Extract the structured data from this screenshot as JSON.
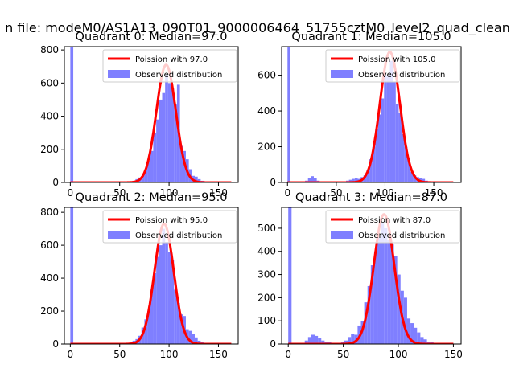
{
  "figure": {
    "suptitle": "n file: modeM0/AS1A13_090T01_9000006464_51755cztM0_level2_quad_clean"
  },
  "colors": {
    "observed": "#7f7fff",
    "poisson": "#ff0000",
    "axes": "#000000",
    "background": "#ffffff"
  },
  "chart_data": [
    {
      "type": "bar",
      "title": "Quadrant 0: Median=97.0",
      "xlim": [
        -6,
        170
      ],
      "ylim": [
        0,
        820
      ],
      "xticks": [
        0,
        50,
        100,
        150
      ],
      "yticks": [
        0,
        200,
        400,
        600,
        800
      ],
      "grid": false,
      "legend_position": "top-right",
      "series": [
        {
          "name": "Poission with 97.0",
          "kind": "line",
          "lambda": 97.0,
          "scale": 710,
          "x_range": [
            0,
            163
          ]
        },
        {
          "name": "Observed distribution",
          "kind": "histogram",
          "bin_width": 3,
          "bins": [
            {
              "x": 0,
              "y": 840
            },
            {
              "x": 63,
              "y": 10
            },
            {
              "x": 66,
              "y": 20
            },
            {
              "x": 69,
              "y": 30
            },
            {
              "x": 72,
              "y": 40
            },
            {
              "x": 75,
              "y": 80
            },
            {
              "x": 78,
              "y": 130
            },
            {
              "x": 81,
              "y": 190
            },
            {
              "x": 84,
              "y": 300
            },
            {
              "x": 87,
              "y": 380
            },
            {
              "x": 90,
              "y": 500
            },
            {
              "x": 93,
              "y": 540
            },
            {
              "x": 96,
              "y": 650
            },
            {
              "x": 99,
              "y": 600
            },
            {
              "x": 102,
              "y": 570
            },
            {
              "x": 105,
              "y": 470
            },
            {
              "x": 108,
              "y": 590
            },
            {
              "x": 111,
              "y": 220
            },
            {
              "x": 114,
              "y": 190
            },
            {
              "x": 117,
              "y": 140
            },
            {
              "x": 120,
              "y": 80
            },
            {
              "x": 123,
              "y": 40
            },
            {
              "x": 126,
              "y": 35
            },
            {
              "x": 129,
              "y": 20
            },
            {
              "x": 132,
              "y": 10
            }
          ]
        }
      ]
    },
    {
      "type": "bar",
      "title": "Quadrant 1: Median=105.0",
      "xlim": [
        -6,
        178
      ],
      "ylim": [
        0,
        760
      ],
      "xticks": [
        0,
        50,
        100,
        150
      ],
      "yticks": [
        0,
        200,
        400,
        600
      ],
      "grid": false,
      "legend_position": "top-right",
      "series": [
        {
          "name": "Poission with 105.0",
          "kind": "line",
          "lambda": 105.0,
          "scale": 730,
          "x_range": [
            0,
            170
          ]
        },
        {
          "name": "Observed distribution",
          "kind": "histogram",
          "bin_width": 3,
          "bins": [
            {
              "x": 0,
              "y": 780
            },
            {
              "x": 18,
              "y": 10
            },
            {
              "x": 21,
              "y": 25
            },
            {
              "x": 24,
              "y": 35
            },
            {
              "x": 27,
              "y": 25
            },
            {
              "x": 30,
              "y": 10
            },
            {
              "x": 60,
              "y": 10
            },
            {
              "x": 63,
              "y": 15
            },
            {
              "x": 66,
              "y": 20
            },
            {
              "x": 69,
              "y": 25
            },
            {
              "x": 72,
              "y": 20
            },
            {
              "x": 75,
              "y": 30
            },
            {
              "x": 78,
              "y": 40
            },
            {
              "x": 81,
              "y": 70
            },
            {
              "x": 84,
              "y": 130
            },
            {
              "x": 87,
              "y": 200
            },
            {
              "x": 90,
              "y": 300
            },
            {
              "x": 93,
              "y": 380
            },
            {
              "x": 96,
              "y": 470
            },
            {
              "x": 99,
              "y": 600
            },
            {
              "x": 102,
              "y": 600
            },
            {
              "x": 105,
              "y": 680
            },
            {
              "x": 108,
              "y": 560
            },
            {
              "x": 111,
              "y": 440
            },
            {
              "x": 114,
              "y": 390
            },
            {
              "x": 117,
              "y": 270
            },
            {
              "x": 120,
              "y": 200
            },
            {
              "x": 123,
              "y": 130
            },
            {
              "x": 126,
              "y": 60
            },
            {
              "x": 129,
              "y": 40
            },
            {
              "x": 132,
              "y": 30
            },
            {
              "x": 135,
              "y": 25
            },
            {
              "x": 138,
              "y": 20
            },
            {
              "x": 141,
              "y": 10
            }
          ]
        }
      ]
    },
    {
      "type": "bar",
      "title": "Quadrant 2: Median=95.0",
      "xlim": [
        -6,
        170
      ],
      "ylim": [
        0,
        830
      ],
      "xticks": [
        0,
        50,
        100,
        150
      ],
      "yticks": [
        0,
        200,
        400,
        600,
        800
      ],
      "grid": false,
      "legend_position": "top-right",
      "series": [
        {
          "name": "Poission with 95.0",
          "kind": "line",
          "lambda": 95.0,
          "scale": 730,
          "x_range": [
            0,
            163
          ]
        },
        {
          "name": "Observed distribution",
          "kind": "histogram",
          "bin_width": 3,
          "bins": [
            {
              "x": 0,
              "y": 850
            },
            {
              "x": 60,
              "y": 10
            },
            {
              "x": 63,
              "y": 20
            },
            {
              "x": 66,
              "y": 30
            },
            {
              "x": 69,
              "y": 50
            },
            {
              "x": 72,
              "y": 100
            },
            {
              "x": 75,
              "y": 150
            },
            {
              "x": 78,
              "y": 200
            },
            {
              "x": 81,
              "y": 330
            },
            {
              "x": 84,
              "y": 430
            },
            {
              "x": 87,
              "y": 530
            },
            {
              "x": 90,
              "y": 600
            },
            {
              "x": 93,
              "y": 700
            },
            {
              "x": 96,
              "y": 620
            },
            {
              "x": 99,
              "y": 560
            },
            {
              "x": 102,
              "y": 510
            },
            {
              "x": 105,
              "y": 330
            },
            {
              "x": 108,
              "y": 250
            },
            {
              "x": 111,
              "y": 180
            },
            {
              "x": 114,
              "y": 170
            },
            {
              "x": 117,
              "y": 90
            },
            {
              "x": 120,
              "y": 80
            },
            {
              "x": 123,
              "y": 60
            },
            {
              "x": 126,
              "y": 40
            },
            {
              "x": 129,
              "y": 20
            },
            {
              "x": 132,
              "y": 10
            }
          ]
        }
      ]
    },
    {
      "type": "bar",
      "title": "Quadrant 3: Median=87.0",
      "xlim": [
        -6,
        157
      ],
      "ylim": [
        0,
        590
      ],
      "xticks": [
        0,
        50,
        100,
        150
      ],
      "yticks": [
        0,
        100,
        200,
        300,
        400,
        500
      ],
      "grid": false,
      "legend_position": "top-right",
      "series": [
        {
          "name": "Poission with 87.0",
          "kind": "line",
          "lambda": 87.0,
          "scale": 560,
          "x_range": [
            0,
            150
          ]
        },
        {
          "name": "Observed distribution",
          "kind": "histogram",
          "bin_width": 3,
          "bins": [
            {
              "x": 0,
              "y": 600
            },
            {
              "x": 15,
              "y": 15
            },
            {
              "x": 18,
              "y": 30
            },
            {
              "x": 21,
              "y": 40
            },
            {
              "x": 24,
              "y": 35
            },
            {
              "x": 27,
              "y": 25
            },
            {
              "x": 30,
              "y": 15
            },
            {
              "x": 33,
              "y": 10
            },
            {
              "x": 36,
              "y": 10
            },
            {
              "x": 48,
              "y": 10
            },
            {
              "x": 51,
              "y": 15
            },
            {
              "x": 54,
              "y": 30
            },
            {
              "x": 57,
              "y": 45
            },
            {
              "x": 60,
              "y": 40
            },
            {
              "x": 63,
              "y": 80
            },
            {
              "x": 66,
              "y": 100
            },
            {
              "x": 69,
              "y": 180
            },
            {
              "x": 72,
              "y": 250
            },
            {
              "x": 75,
              "y": 340
            },
            {
              "x": 78,
              "y": 400
            },
            {
              "x": 81,
              "y": 460
            },
            {
              "x": 84,
              "y": 520
            },
            {
              "x": 87,
              "y": 500
            },
            {
              "x": 90,
              "y": 450
            },
            {
              "x": 93,
              "y": 430
            },
            {
              "x": 96,
              "y": 380
            },
            {
              "x": 99,
              "y": 300
            },
            {
              "x": 102,
              "y": 230
            },
            {
              "x": 105,
              "y": 200
            },
            {
              "x": 108,
              "y": 110
            },
            {
              "x": 111,
              "y": 90
            },
            {
              "x": 114,
              "y": 70
            },
            {
              "x": 117,
              "y": 50
            },
            {
              "x": 120,
              "y": 30
            },
            {
              "x": 123,
              "y": 20
            },
            {
              "x": 126,
              "y": 10
            },
            {
              "x": 129,
              "y": 10
            }
          ]
        }
      ]
    }
  ]
}
